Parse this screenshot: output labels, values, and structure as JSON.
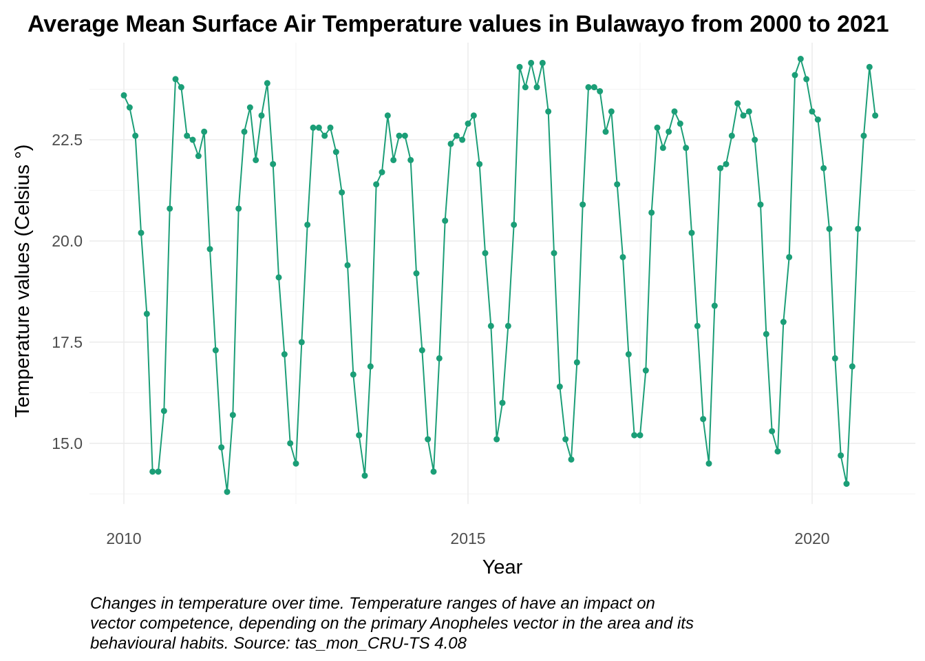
{
  "chart_data": {
    "type": "line",
    "title": "Average Mean Surface Air Temperature values in Bulawayo from 2000 to 2021",
    "xlabel": "Year",
    "ylabel": "Temperature values (Celsius °)",
    "x_ticks": [
      2010,
      2015,
      2020
    ],
    "y_ticks": [
      "15.0",
      "17.5",
      "20.0",
      "22.5"
    ],
    "xlim": [
      2009.5,
      2021.5
    ],
    "ylim": [
      13.5,
      24.9
    ],
    "grid": true,
    "legend": "none",
    "series": [
      {
        "start": 2010,
        "step": "monthly",
        "values": [
          23.6,
          23.3,
          22.6,
          20.2,
          18.2,
          14.3,
          14.3,
          15.8,
          20.8,
          24.0,
          23.8,
          22.6,
          22.5,
          22.1,
          22.7,
          19.8,
          17.3,
          14.9,
          13.8,
          15.7,
          20.8,
          22.7,
          23.3,
          22.0,
          23.1,
          23.9,
          21.9,
          19.1,
          17.2,
          15.0,
          14.5,
          17.5,
          20.4,
          22.8,
          22.8,
          22.6,
          22.8,
          22.2,
          21.2,
          19.4,
          16.7,
          15.2,
          14.2,
          16.9,
          21.4,
          21.7,
          23.1,
          22.0,
          22.6,
          22.6,
          22.0,
          19.2,
          17.3,
          15.1,
          14.3,
          17.1,
          20.5,
          22.4,
          22.6,
          22.5,
          22.9,
          23.1,
          21.9,
          19.7,
          17.9,
          15.1,
          16.0,
          17.9,
          20.4,
          24.3,
          23.8,
          24.4,
          23.8,
          24.4,
          23.2,
          19.7,
          16.4,
          15.1,
          14.6,
          17.0,
          20.9,
          23.8,
          23.8,
          23.7,
          22.7,
          23.2,
          21.4,
          19.6,
          17.2,
          15.2,
          15.2,
          16.8,
          20.7,
          22.8,
          22.3,
          22.7,
          23.2,
          22.9,
          22.3,
          20.2,
          17.9,
          15.6,
          14.5,
          18.4,
          21.8,
          21.9,
          22.6,
          23.4,
          23.1,
          23.2,
          22.5,
          20.9,
          17.7,
          15.3,
          14.8,
          18.0,
          19.6,
          24.1,
          24.5,
          24.0,
          23.2,
          23.0,
          21.8,
          20.3,
          17.1,
          14.7,
          14.0,
          16.9,
          20.3,
          22.6,
          24.3,
          23.1
        ]
      }
    ],
    "colors": {
      "line": "#1b9e77",
      "grid_major": "#ebebeb",
      "grid_minor": "#f5f5f5"
    }
  },
  "caption": {
    "line1": "Changes in temperature over time. Temperature ranges of have an impact on",
    "line2": "vector competence, depending on the primary Anopheles vector in the area and its",
    "line3": "behavioural habits. Source: tas_mon_CRU-TS 4.08"
  }
}
